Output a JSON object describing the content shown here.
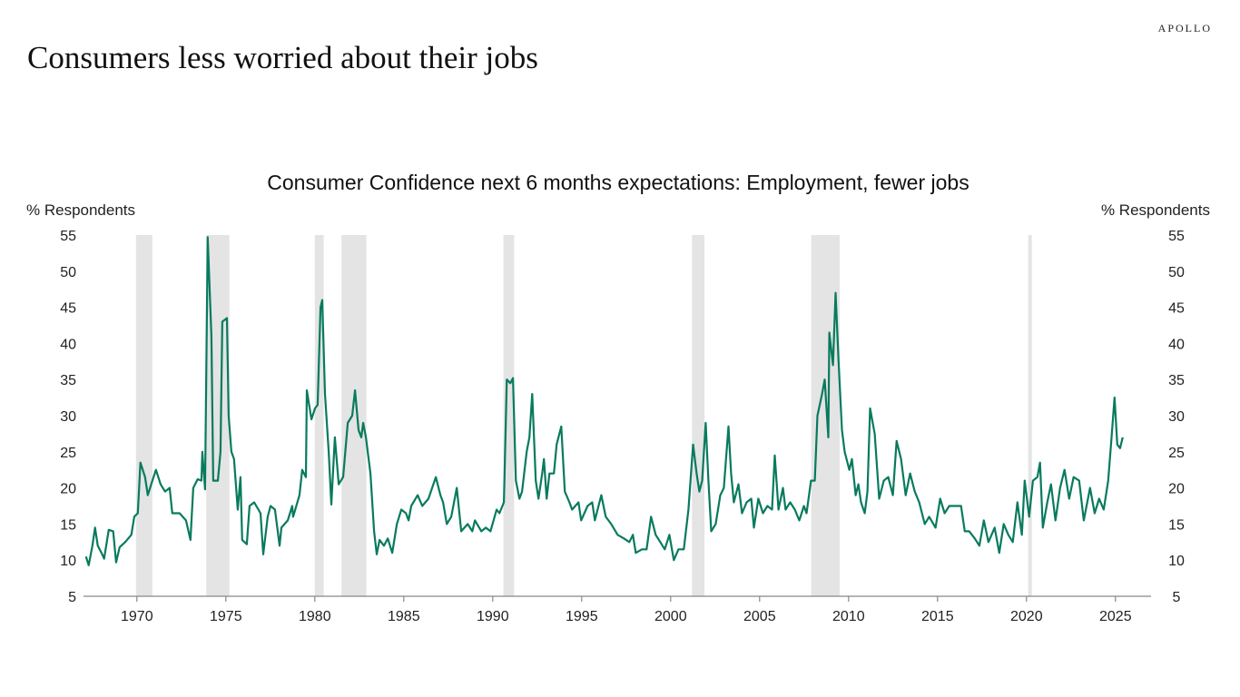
{
  "header": {
    "logo": "APOLLO",
    "title": "Consumers less worried about their jobs"
  },
  "chart_data": {
    "type": "line",
    "title": "Consumer Confidence next 6 months expectations: Employment, fewer jobs",
    "ylabel_left": "% Respondents",
    "ylabel_right": "% Respondents",
    "xlabel": "",
    "ylim": [
      5,
      55
    ],
    "xlim": [
      1967.0,
      2027.0
    ],
    "yticks": [
      5,
      10,
      15,
      20,
      25,
      30,
      35,
      40,
      45,
      50,
      55
    ],
    "xticks": [
      1970,
      1975,
      1980,
      1985,
      1990,
      1995,
      2000,
      2005,
      2010,
      2015,
      2020,
      2025
    ],
    "grid": false,
    "line_color": "#087A5E",
    "recession_color": "#E3E4E3",
    "recessions": [
      [
        1969.95,
        1970.87
      ],
      [
        1973.9,
        1975.2
      ],
      [
        1980.0,
        1980.5
      ],
      [
        1981.5,
        1982.9
      ],
      [
        1990.6,
        1991.2
      ],
      [
        2001.2,
        2001.9
      ],
      [
        2007.9,
        2009.5
      ],
      [
        2020.1,
        2020.3
      ]
    ],
    "points": [
      [
        1967.14,
        10.5
      ],
      [
        1967.29,
        9.3
      ],
      [
        1967.5,
        12
      ],
      [
        1967.65,
        14.5
      ],
      [
        1967.8,
        12
      ],
      [
        1968.01,
        11
      ],
      [
        1968.16,
        10.2
      ],
      [
        1968.42,
        14.2
      ],
      [
        1968.67,
        14
      ],
      [
        1968.83,
        9.7
      ],
      [
        1969.03,
        11.8
      ],
      [
        1969.34,
        12.5
      ],
      [
        1969.69,
        13.5
      ],
      [
        1969.85,
        16
      ],
      [
        1970.05,
        16.5
      ],
      [
        1970.2,
        23.5
      ],
      [
        1970.46,
        21.5
      ],
      [
        1970.61,
        19
      ],
      [
        1970.87,
        21
      ],
      [
        1971.07,
        22.5
      ],
      [
        1971.33,
        20.5
      ],
      [
        1971.58,
        19.5
      ],
      [
        1971.84,
        20
      ],
      [
        1971.99,
        16.5
      ],
      [
        1972.4,
        16.5
      ],
      [
        1972.76,
        15.5
      ],
      [
        1973.01,
        12.8
      ],
      [
        1973.17,
        20
      ],
      [
        1973.42,
        21.2
      ],
      [
        1973.63,
        21
      ],
      [
        1973.68,
        25
      ],
      [
        1973.83,
        19.8
      ],
      [
        1973.98,
        54.7
      ],
      [
        1974.19,
        41
      ],
      [
        1974.29,
        21
      ],
      [
        1974.55,
        21
      ],
      [
        1974.7,
        25
      ],
      [
        1974.8,
        43
      ],
      [
        1975.06,
        43.5
      ],
      [
        1975.16,
        30
      ],
      [
        1975.31,
        25
      ],
      [
        1975.46,
        24
      ],
      [
        1975.67,
        17
      ],
      [
        1975.82,
        21.5
      ],
      [
        1975.92,
        12.8
      ],
      [
        1976.18,
        12.2
      ],
      [
        1976.33,
        17.5
      ],
      [
        1976.59,
        18
      ],
      [
        1976.95,
        16.5
      ],
      [
        1977.1,
        10.8
      ],
      [
        1977.35,
        16
      ],
      [
        1977.51,
        17.5
      ],
      [
        1977.76,
        17
      ],
      [
        1978.02,
        12
      ],
      [
        1978.12,
        14.5
      ],
      [
        1978.48,
        15.5
      ],
      [
        1978.73,
        17.5
      ],
      [
        1978.78,
        16
      ],
      [
        1979.14,
        19
      ],
      [
        1979.29,
        22.5
      ],
      [
        1979.5,
        21.5
      ],
      [
        1979.55,
        33.5
      ],
      [
        1979.81,
        29.5
      ],
      [
        1980.01,
        31
      ],
      [
        1980.16,
        31.5
      ],
      [
        1980.32,
        45
      ],
      [
        1980.42,
        46
      ],
      [
        1980.57,
        33
      ],
      [
        1980.78,
        25
      ],
      [
        1980.93,
        17.7
      ],
      [
        1981.13,
        27
      ],
      [
        1981.34,
        20.5
      ],
      [
        1981.59,
        21.5
      ],
      [
        1981.85,
        29
      ],
      [
        1982.1,
        30
      ],
      [
        1982.26,
        33.5
      ],
      [
        1982.46,
        28
      ],
      [
        1982.61,
        27
      ],
      [
        1982.72,
        29
      ],
      [
        1982.87,
        27
      ],
      [
        1983.13,
        22
      ],
      [
        1983.33,
        14
      ],
      [
        1983.48,
        10.8
      ],
      [
        1983.64,
        12.8
      ],
      [
        1983.89,
        12
      ],
      [
        1984.1,
        13
      ],
      [
        1984.35,
        11
      ],
      [
        1984.61,
        15
      ],
      [
        1984.86,
        17
      ],
      [
        1985.12,
        16.5
      ],
      [
        1985.27,
        15.5
      ],
      [
        1985.42,
        17.5
      ],
      [
        1985.78,
        19
      ],
      [
        1986.04,
        17.5
      ],
      [
        1986.39,
        18.5
      ],
      [
        1986.8,
        21.5
      ],
      [
        1987.06,
        19
      ],
      [
        1987.21,
        18
      ],
      [
        1987.42,
        15
      ],
      [
        1987.67,
        16
      ],
      [
        1987.98,
        20
      ],
      [
        1988.23,
        14
      ],
      [
        1988.59,
        15
      ],
      [
        1988.85,
        14
      ],
      [
        1989.0,
        15.5
      ],
      [
        1989.36,
        14
      ],
      [
        1989.61,
        14.5
      ],
      [
        1989.87,
        14
      ],
      [
        1990.22,
        17
      ],
      [
        1990.38,
        16.5
      ],
      [
        1990.63,
        18
      ],
      [
        1990.79,
        35
      ],
      [
        1990.99,
        34.5
      ],
      [
        1991.14,
        35.2
      ],
      [
        1991.3,
        21
      ],
      [
        1991.5,
        18.5
      ],
      [
        1991.65,
        19.5
      ],
      [
        1991.91,
        25
      ],
      [
        1992.06,
        27
      ],
      [
        1992.22,
        33
      ],
      [
        1992.42,
        21
      ],
      [
        1992.57,
        18.5
      ],
      [
        1992.78,
        22
      ],
      [
        1992.88,
        24
      ],
      [
        1993.03,
        18.5
      ],
      [
        1993.19,
        22
      ],
      [
        1993.44,
        22
      ],
      [
        1993.59,
        26
      ],
      [
        1993.85,
        28.5
      ],
      [
        1994.05,
        19.5
      ],
      [
        1994.31,
        18
      ],
      [
        1994.46,
        17
      ],
      [
        1994.82,
        18
      ],
      [
        1994.97,
        15.5
      ],
      [
        1995.33,
        17.5
      ],
      [
        1995.59,
        18
      ],
      [
        1995.74,
        15.5
      ],
      [
        1996.1,
        19
      ],
      [
        1996.35,
        16
      ],
      [
        1996.66,
        15
      ],
      [
        1997.02,
        13.5
      ],
      [
        1997.37,
        13
      ],
      [
        1997.68,
        12.5
      ],
      [
        1997.88,
        13.5
      ],
      [
        1998.04,
        11
      ],
      [
        1998.39,
        11.5
      ],
      [
        1998.65,
        11.5
      ],
      [
        1998.9,
        16
      ],
      [
        1999.16,
        13.5
      ],
      [
        1999.42,
        12.5
      ],
      [
        1999.67,
        11.5
      ],
      [
        1999.93,
        13.5
      ],
      [
        2000.18,
        10
      ],
      [
        2000.44,
        11.5
      ],
      [
        2000.74,
        11.5
      ],
      [
        2001.0,
        17
      ],
      [
        2001.26,
        26
      ],
      [
        2001.46,
        22
      ],
      [
        2001.61,
        19.5
      ],
      [
        2001.77,
        21
      ],
      [
        2001.97,
        29
      ],
      [
        2002.12,
        21
      ],
      [
        2002.28,
        14
      ],
      [
        2002.53,
        15
      ],
      [
        2002.79,
        19
      ],
      [
        2002.99,
        20
      ],
      [
        2003.25,
        28.5
      ],
      [
        2003.4,
        22
      ],
      [
        2003.55,
        18
      ],
      [
        2003.81,
        20.5
      ],
      [
        2004.01,
        16.5
      ],
      [
        2004.27,
        18
      ],
      [
        2004.53,
        18.5
      ],
      [
        2004.68,
        14.5
      ],
      [
        2004.93,
        18.5
      ],
      [
        2005.19,
        16.5
      ],
      [
        2005.44,
        17.5
      ],
      [
        2005.7,
        17
      ],
      [
        2005.85,
        24.5
      ],
      [
        2006.06,
        17
      ],
      [
        2006.31,
        20
      ],
      [
        2006.46,
        17
      ],
      [
        2006.72,
        18
      ],
      [
        2006.98,
        17
      ],
      [
        2007.23,
        15.5
      ],
      [
        2007.49,
        17.5
      ],
      [
        2007.64,
        16.5
      ],
      [
        2007.89,
        21
      ],
      [
        2008.1,
        21
      ],
      [
        2008.25,
        30
      ],
      [
        2008.51,
        33
      ],
      [
        2008.66,
        35
      ],
      [
        2008.86,
        27
      ],
      [
        2008.92,
        41.5
      ],
      [
        2009.12,
        37
      ],
      [
        2009.27,
        47
      ],
      [
        2009.43,
        38
      ],
      [
        2009.63,
        28
      ],
      [
        2009.78,
        25
      ],
      [
        2010.04,
        22.5
      ],
      [
        2010.19,
        24
      ],
      [
        2010.4,
        19
      ],
      [
        2010.55,
        20.5
      ],
      [
        2010.7,
        18
      ],
      [
        2010.91,
        16.5
      ],
      [
        2011.06,
        19.5
      ],
      [
        2011.21,
        31
      ],
      [
        2011.47,
        27.5
      ],
      [
        2011.72,
        18.5
      ],
      [
        2011.98,
        21
      ],
      [
        2012.23,
        21.5
      ],
      [
        2012.49,
        19
      ],
      [
        2012.7,
        26.5
      ],
      [
        2012.95,
        24
      ],
      [
        2013.21,
        19
      ],
      [
        2013.46,
        22
      ],
      [
        2013.72,
        19.5
      ],
      [
        2013.97,
        18
      ],
      [
        2014.28,
        15
      ],
      [
        2014.53,
        16
      ],
      [
        2014.89,
        14.5
      ],
      [
        2015.15,
        18.5
      ],
      [
        2015.4,
        16.5
      ],
      [
        2015.66,
        17.5
      ],
      [
        2016.02,
        17.5
      ],
      [
        2016.32,
        17.5
      ],
      [
        2016.53,
        14
      ],
      [
        2016.78,
        14
      ],
      [
        2017.09,
        13
      ],
      [
        2017.35,
        12
      ],
      [
        2017.6,
        15.5
      ],
      [
        2017.86,
        12.5
      ],
      [
        2018.21,
        14.5
      ],
      [
        2018.47,
        11
      ],
      [
        2018.72,
        15
      ],
      [
        2018.98,
        13.5
      ],
      [
        2019.23,
        12.5
      ],
      [
        2019.49,
        18
      ],
      [
        2019.74,
        13.5
      ],
      [
        2019.9,
        21
      ],
      [
        2020.15,
        16
      ],
      [
        2020.36,
        21
      ],
      [
        2020.61,
        21.5
      ],
      [
        2020.76,
        23.5
      ],
      [
        2020.92,
        14.5
      ],
      [
        2021.17,
        18
      ],
      [
        2021.38,
        20.5
      ],
      [
        2021.63,
        15.5
      ],
      [
        2021.89,
        20
      ],
      [
        2022.14,
        22.5
      ],
      [
        2022.4,
        18.5
      ],
      [
        2022.65,
        21.5
      ],
      [
        2022.96,
        21
      ],
      [
        2023.22,
        15.5
      ],
      [
        2023.57,
        20
      ],
      [
        2023.83,
        16.5
      ],
      [
        2024.08,
        18.5
      ],
      [
        2024.34,
        17
      ],
      [
        2024.59,
        21
      ],
      [
        2024.75,
        26
      ],
      [
        2024.95,
        32.5
      ],
      [
        2025.1,
        26
      ],
      [
        2025.26,
        25.5
      ],
      [
        2025.41,
        27
      ]
    ]
  }
}
